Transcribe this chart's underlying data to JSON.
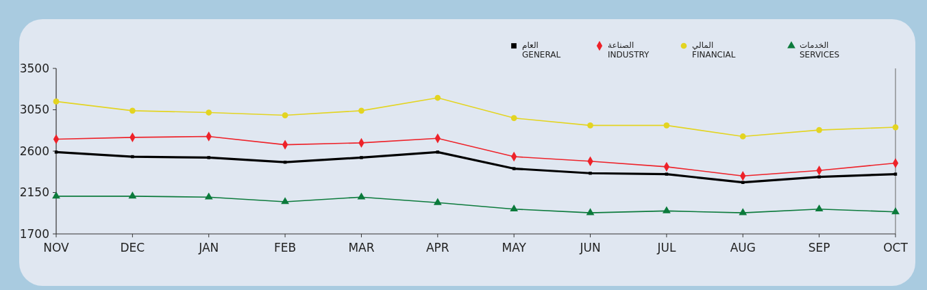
{
  "chart_data": {
    "type": "line",
    "categories": [
      "NOV",
      "DEC",
      "JAN",
      "FEB",
      "MAR",
      "APR",
      "MAY",
      "JUN",
      "JUL",
      "AUG",
      "SEP",
      "OCT"
    ],
    "ylim": [
      1700,
      3500
    ],
    "yticks": [
      1700,
      2150,
      2600,
      3050,
      3500
    ],
    "grid": false,
    "legend": "top right",
    "series": [
      {
        "name": "العام\nGENERAL",
        "color": "#000000",
        "marker": "square",
        "values": [
          2590,
          2540,
          2530,
          2480,
          2530,
          2590,
          2410,
          2360,
          2350,
          2260,
          2320,
          2350
        ]
      },
      {
        "name": "الصناعة\nINDUSTRY",
        "color": "#ee2229",
        "marker": "diamond",
        "values": [
          2730,
          2750,
          2760,
          2670,
          2690,
          2740,
          2540,
          2490,
          2430,
          2330,
          2390,
          2470
        ]
      },
      {
        "name": "المالي\nFINANCIAL",
        "color": "#e3d421",
        "marker": "circle",
        "values": [
          3140,
          3040,
          3020,
          2990,
          3040,
          3180,
          2960,
          2880,
          2880,
          2760,
          2830,
          2860
        ]
      },
      {
        "name": "الخدمات\nSERVICES",
        "color": "#0b7a3b",
        "marker": "triangle",
        "values": [
          2110,
          2110,
          2100,
          2050,
          2100,
          2040,
          1970,
          1930,
          1950,
          1930,
          1970,
          1940
        ]
      }
    ]
  }
}
